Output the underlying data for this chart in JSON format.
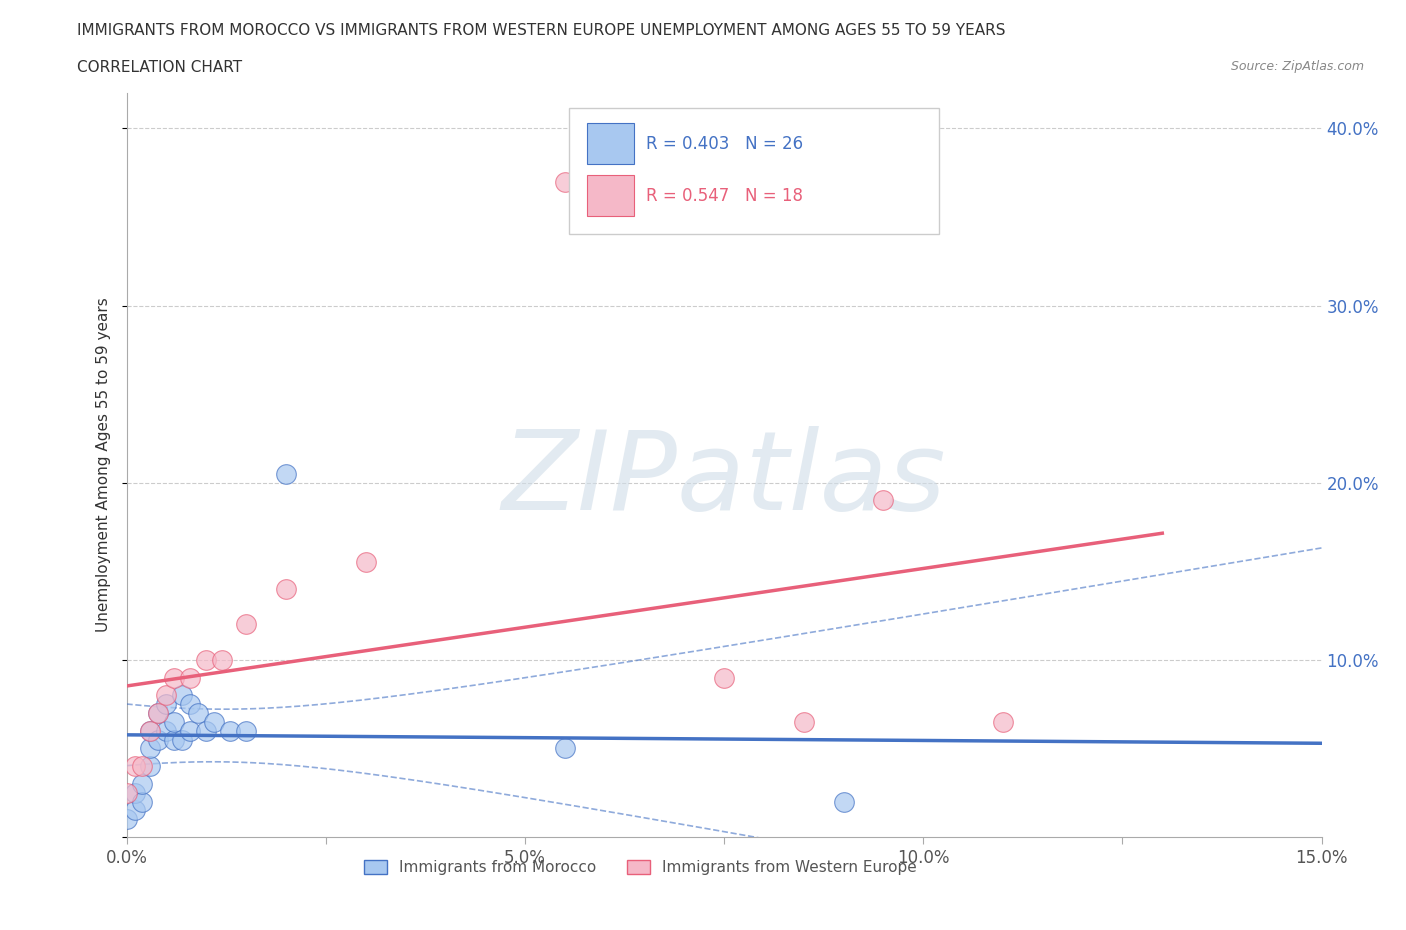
{
  "title": "IMMIGRANTS FROM MOROCCO VS IMMIGRANTS FROM WESTERN EUROPE UNEMPLOYMENT AMONG AGES 55 TO 59 YEARS",
  "subtitle": "CORRELATION CHART",
  "source": "Source: ZipAtlas.com",
  "ylabel": "Unemployment Among Ages 55 to 59 years",
  "xlim": [
    0.0,
    0.15
  ],
  "ylim": [
    0.0,
    0.42
  ],
  "xticks": [
    0.0,
    0.025,
    0.05,
    0.075,
    0.1,
    0.125,
    0.15
  ],
  "xticklabels": [
    "0.0%",
    "",
    "5.0%",
    "",
    "10.0%",
    "",
    "15.0%"
  ],
  "yticks": [
    0.0,
    0.1,
    0.2,
    0.3,
    0.4
  ],
  "yticklabels_right": [
    "",
    "10.0%",
    "20.0%",
    "30.0%",
    "40.0%"
  ],
  "legend_r1": "R = 0.403",
  "legend_n1": "N = 26",
  "legend_r2": "R = 0.547",
  "legend_n2": "N = 18",
  "series1_color": "#a8c8f0",
  "series2_color": "#f5b8c8",
  "trendline1_color": "#4472c4",
  "trendline2_color": "#e8607a",
  "yaxis_color": "#4472c4",
  "watermark": "ZIPatlas",
  "background_color": "#ffffff",
  "grid_color": "#cccccc",
  "morocco_x": [
    0.0,
    0.001,
    0.001,
    0.002,
    0.002,
    0.003,
    0.003,
    0.003,
    0.004,
    0.004,
    0.005,
    0.005,
    0.006,
    0.006,
    0.007,
    0.007,
    0.008,
    0.008,
    0.009,
    0.01,
    0.011,
    0.013,
    0.015,
    0.02,
    0.055,
    0.09
  ],
  "morocco_y": [
    0.01,
    0.015,
    0.025,
    0.02,
    0.03,
    0.04,
    0.05,
    0.06,
    0.055,
    0.07,
    0.06,
    0.075,
    0.055,
    0.065,
    0.055,
    0.08,
    0.06,
    0.075,
    0.07,
    0.06,
    0.065,
    0.06,
    0.06,
    0.205,
    0.05,
    0.02
  ],
  "western_x": [
    0.0,
    0.001,
    0.002,
    0.003,
    0.004,
    0.005,
    0.006,
    0.008,
    0.01,
    0.012,
    0.015,
    0.02,
    0.03,
    0.055,
    0.075,
    0.085,
    0.095,
    0.11
  ],
  "western_y": [
    0.025,
    0.04,
    0.04,
    0.06,
    0.07,
    0.08,
    0.09,
    0.09,
    0.1,
    0.1,
    0.12,
    0.14,
    0.155,
    0.37,
    0.09,
    0.065,
    0.19,
    0.065
  ]
}
